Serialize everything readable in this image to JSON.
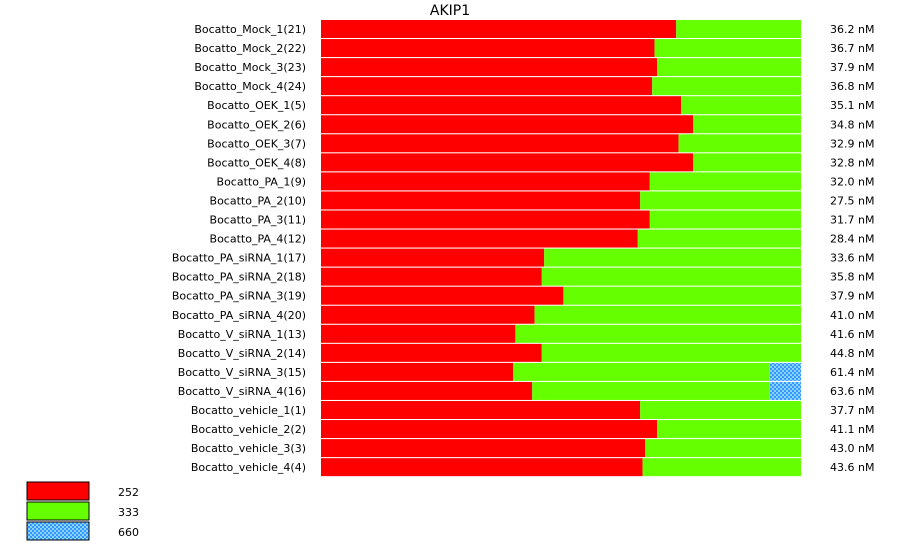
{
  "chart_data": {
    "type": "bar",
    "orientation": "horizontal",
    "stacked": true,
    "normalized": true,
    "title": "AKIP1",
    "categories": [
      "Bocatto_Mock_1(21)",
      "Bocatto_Mock_2(22)",
      "Bocatto_Mock_3(23)",
      "Bocatto_Mock_4(24)",
      "Bocatto_OEK_1(5)",
      "Bocatto_OEK_2(6)",
      "Bocatto_OEK_3(7)",
      "Bocatto_OEK_4(8)",
      "Bocatto_PA_1(9)",
      "Bocatto_PA_2(10)",
      "Bocatto_PA_3(11)",
      "Bocatto_PA_4(12)",
      "Bocatto_PA_siRNA_1(17)",
      "Bocatto_PA_siRNA_2(18)",
      "Bocatto_PA_siRNA_3(19)",
      "Bocatto_PA_siRNA_4(20)",
      "Bocatto_V_siRNA_1(13)",
      "Bocatto_V_siRNA_2(14)",
      "Bocatto_V_siRNA_3(15)",
      "Bocatto_V_siRNA_4(16)",
      "Bocatto_vehicle_1(1)",
      "Bocatto_vehicle_2(2)",
      "Bocatto_vehicle_3(3)",
      "Bocatto_vehicle_4(4)"
    ],
    "series": [
      {
        "name": "252",
        "color": "#ff0000",
        "pattern": "solid",
        "values": [
          74,
          69.5,
          70,
          69,
          75,
          77.5,
          74.5,
          77.5,
          68.5,
          66.5,
          68.5,
          66,
          46.5,
          46,
          50.5,
          44.5,
          40.5,
          46,
          40,
          44,
          66.5,
          70,
          67.5,
          67
        ]
      },
      {
        "name": "333",
        "color": "#66ff00",
        "pattern": "solid",
        "values": [
          26,
          30.5,
          30,
          31,
          25,
          22.5,
          25.5,
          22.5,
          31.5,
          33.5,
          31.5,
          34,
          53.5,
          54,
          49.5,
          55.5,
          59.5,
          54,
          53.5,
          49.5,
          33.5,
          30,
          32.5,
          33
        ]
      },
      {
        "name": "660",
        "color": "#3399ff",
        "pattern": "checker",
        "values": [
          0,
          0,
          0,
          0,
          0,
          0,
          0,
          0,
          0,
          0,
          0,
          0,
          0,
          0,
          0,
          0,
          0,
          0,
          6.5,
          6.5,
          0,
          0,
          0,
          0
        ]
      }
    ],
    "totals": [
      "36.2 nM",
      "36.7 nM",
      "37.9 nM",
      "36.8 nM",
      "35.1 nM",
      "34.8 nM",
      "32.9 nM",
      "32.8 nM",
      "32.0 nM",
      "27.5 nM",
      "31.7 nM",
      "28.4 nM",
      "33.6 nM",
      "35.8 nM",
      "37.9 nM",
      "41.0 nM",
      "41.6 nM",
      "44.8 nM",
      "61.4 nM",
      "63.6 nM",
      "37.7 nM",
      "41.1 nM",
      "43.0 nM",
      "43.6 nM"
    ],
    "legend": {
      "position": "bottom-left",
      "entries": [
        "252",
        "333",
        "660"
      ]
    },
    "xlim": [
      0,
      100
    ],
    "grid": false
  }
}
